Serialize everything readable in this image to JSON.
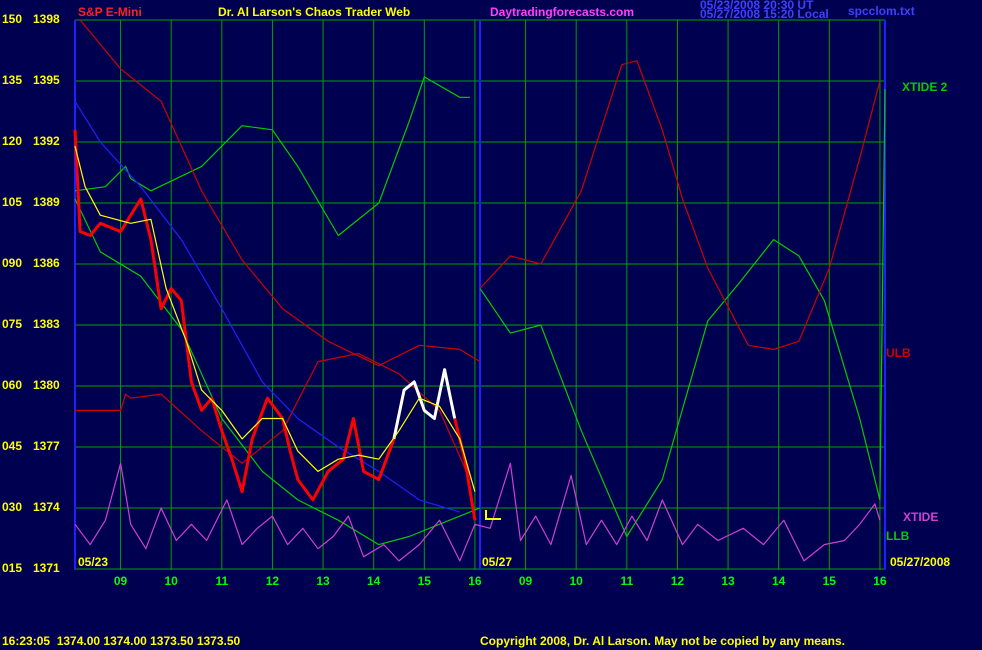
{
  "chart_data": {
    "type": "line",
    "title": "Dr. Al Larson's Chaos Trader Web",
    "symbol": "S&P E-Mini",
    "website": "Daytradingforecasts.com",
    "timestamps": [
      "05/23/2008 20:30 UT",
      "05/27/2008 15:20 Local"
    ],
    "filename": "spcclom.txt",
    "quote": "16:23:05  1374.00 1374.00 1373.50 1373.50",
    "copyright": "Copyright 2008, Dr. Al Larson. May not be copied by any means.",
    "dates": [
      "05/23",
      "05/27",
      "05/27/2008"
    ],
    "xlim": [
      8.1,
      24.1
    ],
    "xticks": [
      {
        "value": 9,
        "label": "09"
      },
      10,
      11,
      12,
      13,
      14,
      15,
      16,
      {
        "value": 17,
        "label": "09"
      },
      {
        "value": 18,
        "label": "10"
      },
      {
        "value": 19,
        "label": "11"
      },
      {
        "value": 20,
        "label": "12"
      },
      {
        "value": 21,
        "label": "13"
      },
      {
        "value": 22,
        "label": "14"
      },
      {
        "value": 23,
        "label": "15"
      },
      {
        "value": 24,
        "label": "16"
      }
    ],
    "ylim": [
      15,
      150
    ],
    "yticks": [
      150,
      135,
      120,
      105,
      {
        "value": 90,
        "label": "090"
      },
      {
        "value": 75,
        "label": "075"
      },
      {
        "value": 60,
        "label": "060"
      },
      {
        "value": 45,
        "label": "045"
      },
      {
        "value": 30,
        "label": "030"
      },
      {
        "value": 15,
        "label": "015"
      }
    ],
    "y2lim": [
      1371,
      1398
    ],
    "y2ticks": [
      1398,
      1395,
      1392,
      1389,
      1386,
      1383,
      1380,
      1377,
      1374,
      1371
    ],
    "grid": true,
    "grid_color": "#00a000",
    "series": [
      {
        "color": "#00cc00",
        "x": [
          8.1,
          8.7,
          9.1,
          9.2,
          9.6,
          10.6,
          11.4,
          12.0,
          12.5,
          13.3,
          14.1,
          14.7,
          15.0,
          15.7,
          15.9
        ],
        "values": [
          108,
          109,
          114,
          111,
          108,
          114,
          124,
          123,
          114,
          97,
          105,
          125,
          136,
          131,
          131
        ]
      },
      {
        "name": "XTIDE 2",
        "color": "#00cc00",
        "x": [
          16.1,
          16.7,
          17.3,
          18.1,
          19.0,
          19.7,
          20.6,
          21.2,
          21.9,
          22.4,
          22.9,
          23.6,
          24.0,
          24.1
        ],
        "values": [
          84,
          73,
          75,
          49,
          23,
          37,
          76,
          85,
          96,
          92,
          81,
          52,
          32,
          133
        ]
      },
      {
        "color": "#d00000",
        "x": [
          8.2,
          9.0,
          9.8,
          10.6,
          11.4,
          12.2,
          13.1,
          14.1,
          14.9,
          15.7,
          16.1
        ],
        "values": [
          150,
          138,
          130,
          108,
          91,
          79,
          71,
          65,
          70,
          69,
          66
        ]
      },
      {
        "name": "ULB",
        "color": "#d00000",
        "x": [
          16.1,
          16.7,
          17.3,
          18.1,
          18.9,
          19.2,
          19.7,
          20.1,
          20.6,
          21.4,
          21.9,
          22.4,
          23.0,
          23.6,
          24.0
        ],
        "values": [
          84,
          92,
          90,
          108,
          139,
          140,
          123,
          106,
          89,
          70,
          69,
          71,
          89,
          116,
          135
        ]
      },
      {
        "color": "#d00000",
        "x": [
          8.1,
          9.0,
          9.1,
          9.2,
          9.8,
          10.6,
          11.4,
          12.2,
          12.9,
          13.7,
          14.5,
          15.3,
          15.9
        ],
        "values": [
          54,
          54,
          58,
          57,
          58,
          49,
          41,
          49,
          66,
          68,
          63,
          54,
          37
        ]
      },
      {
        "name": "LLB",
        "color": "#00cc00",
        "x": [
          8.1,
          8.6,
          9.4,
          10.2,
          11.0,
          11.8,
          12.5,
          13.3,
          14.1,
          14.7,
          15.5,
          16.1
        ],
        "values": [
          106,
          93,
          87,
          74,
          52,
          39,
          32,
          27,
          21,
          23,
          27,
          30
        ]
      },
      {
        "color": "#2020ff",
        "x": [
          8.1,
          8.6,
          9.4,
          10.2,
          11.0,
          11.8,
          12.5,
          13.3,
          14.1,
          14.9,
          15.7
        ],
        "values": [
          130,
          120,
          109,
          96,
          79,
          61,
          52,
          45,
          39,
          32,
          29
        ]
      },
      {
        "color": "#ff0000",
        "width": 3,
        "x": [
          8.1,
          8.2,
          8.4,
          8.6,
          9.0,
          9.4,
          9.6,
          9.8,
          10.0,
          10.2,
          10.4,
          10.6,
          10.8,
          11.0,
          11.2,
          11.4,
          11.6,
          11.9,
          12.2,
          12.35,
          12.5,
          12.8,
          13.1,
          13.4,
          13.6,
          13.8,
          14.1,
          14.4
        ],
        "values": [
          123,
          98,
          97,
          100,
          98,
          106,
          96,
          79,
          84,
          81,
          61,
          54,
          57,
          49,
          42,
          34,
          47,
          57,
          52,
          44,
          37,
          32,
          39,
          42,
          52,
          39,
          37,
          47
        ]
      },
      {
        "color": "#ffffff",
        "width": 3,
        "x": [
          14.4,
          14.6,
          14.8,
          15.0,
          15.2,
          15.4,
          15.6
        ],
        "values": [
          47,
          59,
          61,
          54,
          52,
          64,
          52
        ]
      },
      {
        "color": "#ff0000",
        "width": 3,
        "x": [
          15.6,
          15.8,
          16.0
        ],
        "values": [
          52,
          42,
          27
        ]
      },
      {
        "color": "#ffff00",
        "x": [
          8.1,
          8.3,
          8.6,
          9.2,
          9.6,
          9.9,
          10.3,
          10.6,
          11.0,
          11.4,
          11.8,
          12.2,
          12.5,
          12.9,
          13.3,
          13.7,
          14.1,
          14.5,
          14.9,
          15.3,
          15.7,
          16.0
        ],
        "values": [
          119,
          109,
          102,
          100,
          101,
          84,
          71,
          59,
          54,
          47,
          52,
          52,
          44,
          39,
          42,
          43,
          42,
          49,
          57,
          55,
          47,
          34
        ]
      },
      {
        "name": "XTIDE",
        "color": "#d040d0",
        "x": [
          8.1,
          8.4,
          8.7,
          9.0,
          9.2,
          9.5,
          9.8,
          10.1,
          10.4,
          10.7,
          11.1,
          11.4,
          11.7,
          12.0,
          12.3,
          12.6,
          12.9,
          13.2,
          13.5,
          13.8,
          14.2,
          14.5,
          14.9,
          15.3,
          15.7,
          16.0,
          16.3,
          16.7,
          16.9,
          17.2,
          17.5,
          17.9,
          18.2,
          18.5,
          18.8,
          19.1,
          19.4,
          19.7,
          20.1,
          20.4,
          20.8,
          21.3,
          21.7,
          22.1,
          22.5,
          22.9,
          23.3,
          23.6,
          23.9,
          24.0
        ],
        "values": [
          26,
          21,
          27,
          41,
          26,
          20,
          30,
          22,
          26,
          22,
          32,
          21,
          25,
          28,
          21,
          25,
          20,
          23,
          28,
          18,
          21,
          17,
          21,
          27,
          17,
          26,
          25,
          41,
          22,
          28,
          21,
          38,
          21,
          27,
          21,
          28,
          22,
          32,
          21,
          26,
          22,
          25,
          21,
          27,
          17,
          21,
          22,
          26,
          31,
          27
        ]
      }
    ]
  }
}
